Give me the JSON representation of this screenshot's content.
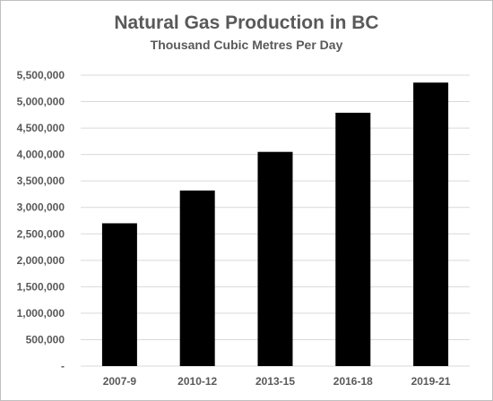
{
  "chart_data": {
    "type": "bar",
    "title": "Natural Gas Production in BC",
    "subtitle": "Thousand Cubic Metres Per Day",
    "categories": [
      "2007-9",
      "2010-12",
      "2013-15",
      "2016-18",
      "2019-21"
    ],
    "values": [
      2700000,
      3320000,
      4050000,
      4790000,
      5360000
    ],
    "ylim": [
      0,
      5500000
    ],
    "yticks": [
      0,
      500000,
      1000000,
      1500000,
      2000000,
      2500000,
      3000000,
      3500000,
      4000000,
      4500000,
      5000000,
      5500000
    ],
    "ytick_labels": [
      "-",
      "500,000",
      "1,000,000",
      "1,500,000",
      "2,000,000",
      "2,500,000",
      "3,000,000",
      "3,500,000",
      "4,000,000",
      "4,500,000",
      "5,000,000",
      "5,500,000"
    ],
    "grid": true,
    "bar_color": "#000000",
    "grid_color": "#d9d9d9"
  }
}
